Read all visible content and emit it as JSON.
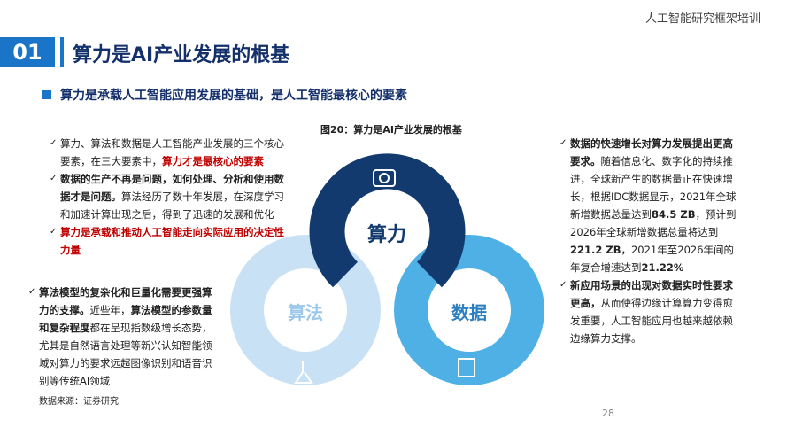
{
  "header": {
    "top_right": "人工智能研究框架培训",
    "number": "01",
    "title": "算力是AI产业发展的根基"
  },
  "subtitle": "算力是承载人工智能应用发展的基础，是人工智能最核心的要素",
  "figure": {
    "title": "图20：算力是AI产业发展的根基",
    "labels": [
      "算力",
      "算法",
      "数据"
    ]
  },
  "left_top": [
    [
      {
        "text": "算力、算法和数据是人工智能产业发展的三个核心要素，在三大要素中，"
      },
      {
        "text": "算力才是最核心的要素",
        "style": "red"
      }
    ],
    [
      {
        "text": "数据的生产不再是问题，如何处理、分析和使用数据才是问题。",
        "style": "bold"
      },
      {
        "text": "算法经历了数十年发展，在深度学习和加速计算出现之后，得到了迅速的发展和优化"
      }
    ],
    [
      {
        "text": "算力是承载和推动人工智能走向实际应用的决定性力量",
        "style": "red"
      }
    ]
  ],
  "left_bottom": [
    [
      {
        "text": "算法模型的复杂化和巨量化需要更强算力的支撑。",
        "style": "bold"
      },
      {
        "text": "近些年，"
      },
      {
        "text": "算法模型的参数量和复杂程度",
        "style": "bold"
      },
      {
        "text": "都在呈现指数级增长态势，尤其是自然语言处理等新兴认知智能领域对算力的要求远超图像识别和语音识别等传统AI领域"
      }
    ]
  ],
  "source": "数据来源：证券研究",
  "right": [
    [
      {
        "text": "数据的快速增长对算力发展提出更高要求。",
        "style": "bold"
      },
      {
        "text": "随着信息化、数字化的持续推进，全球新产生的数据量正在快速增长，根据IDC数据显示，2021年全球新增数据总量达到"
      },
      {
        "text": "84.5 ZB",
        "style": "bold"
      },
      {
        "text": "，预计到2026年全球新增数据总量将达到"
      },
      {
        "text": "221.2 ZB",
        "style": "bold"
      },
      {
        "text": "，2021年至2026年间的年复合增速达到"
      },
      {
        "text": "21.22%",
        "style": "bold"
      }
    ],
    [
      {
        "text": "新应用场景的出现对数据实时性要求更高，",
        "style": "bold"
      },
      {
        "text": "从而使得边缘计算算力变得愈发重要，人工智能应用也越来越依赖边缘算力支撑。"
      }
    ]
  ],
  "page_number": "28"
}
